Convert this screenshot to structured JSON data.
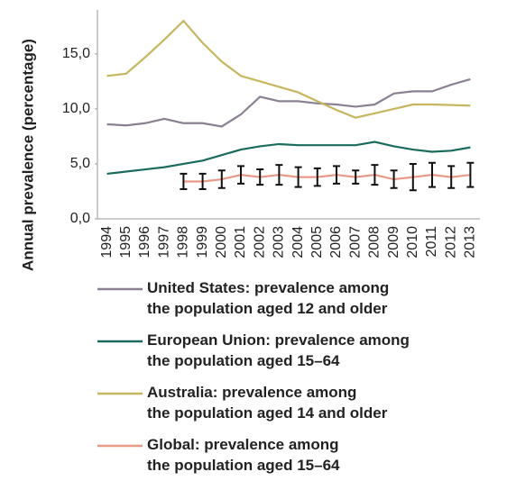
{
  "chart_data": {
    "type": "line",
    "y_label": "Annual prevalence (percentage)",
    "x": [
      "1994",
      "1995",
      "1996",
      "1997",
      "1998",
      "1999",
      "2000",
      "2001",
      "2002",
      "2003",
      "2004",
      "2005",
      "2006",
      "2007",
      "2008",
      "2009",
      "2010",
      "2011",
      "2012",
      "2013"
    ],
    "ylim": [
      0,
      19
    ],
    "yticks": [
      {
        "value": 0,
        "label": "0,0"
      },
      {
        "value": 5,
        "label": "5,0"
      },
      {
        "value": 10,
        "label": "10,0"
      },
      {
        "value": 15,
        "label": "15,0"
      }
    ],
    "grid": false,
    "legend": "bottom",
    "series": [
      {
        "name": "United States: prevalence among\nthe population aged 12 and older",
        "color": "#8a8092",
        "values": [
          8.6,
          8.5,
          8.7,
          9.1,
          8.7,
          8.7,
          8.4,
          9.5,
          11.1,
          10.7,
          10.7,
          10.5,
          10.4,
          10.2,
          10.4,
          11.4,
          11.6,
          11.6,
          12.2,
          12.7
        ]
      },
      {
        "name": "European Union: prevalence among\nthe population aged 15–64",
        "color": "#1a6b5e",
        "values": [
          4.1,
          4.3,
          4.5,
          4.7,
          5.0,
          5.3,
          5.8,
          6.3,
          6.6,
          6.8,
          6.7,
          6.7,
          6.7,
          6.7,
          7.0,
          6.6,
          6.3,
          6.1,
          6.2,
          6.5
        ]
      },
      {
        "name": "Australia: prevalence among\nthe population aged 14 and older",
        "color": "#c8b560",
        "values": [
          13.0,
          13.2,
          14.7,
          16.3,
          18.0,
          16.0,
          14.3,
          13.0,
          12.5,
          12.0,
          11.5,
          10.7,
          9.9,
          9.2,
          9.6,
          10.0,
          10.4,
          10.4,
          10.35,
          10.3
        ]
      },
      {
        "name": "Global: prevalence among\nthe population aged 15–64",
        "color": "#e99a87",
        "error_color": "#111111",
        "values": [
          null,
          null,
          null,
          null,
          3.4,
          3.4,
          3.6,
          4.0,
          3.8,
          4.0,
          3.8,
          3.8,
          4.0,
          3.8,
          4.0,
          3.6,
          3.8,
          4.0,
          3.8,
          4.0
        ],
        "errors": [
          null,
          null,
          null,
          null,
          0.7,
          0.7,
          0.8,
          0.8,
          0.7,
          0.9,
          0.9,
          0.8,
          0.8,
          0.6,
          0.9,
          0.8,
          1.2,
          1.1,
          1.0,
          1.1
        ]
      }
    ]
  }
}
